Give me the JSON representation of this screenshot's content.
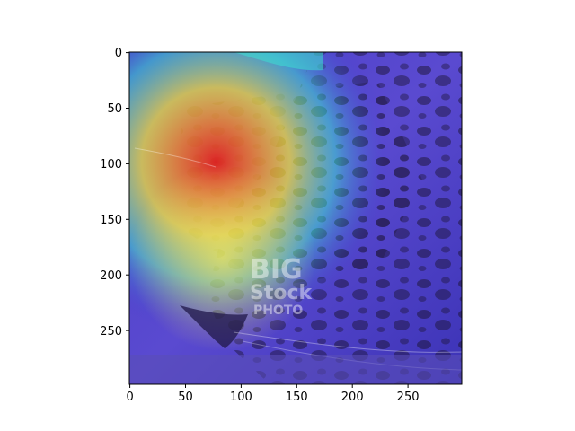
{
  "figure": {
    "image_subject": "leopard face with class-activation heatmap overlay",
    "watermark": {
      "line1": "BIG",
      "line2": "Stock",
      "line3": "PHOTO"
    },
    "axes": {
      "x_ticks": [
        "0",
        "50",
        "100",
        "150",
        "200",
        "250"
      ],
      "y_ticks": [
        "0",
        "50",
        "100",
        "150",
        "200",
        "250"
      ],
      "xlim": [
        0,
        299
      ],
      "ylim": [
        299,
        0
      ]
    },
    "colors": {
      "heatmap_low": "#3a2fd0",
      "heatmap_mid": "#3ee0d0",
      "heatmap_warm": "#f2e23a",
      "heatmap_hot": "#e8241a",
      "axis": "#000000"
    }
  }
}
